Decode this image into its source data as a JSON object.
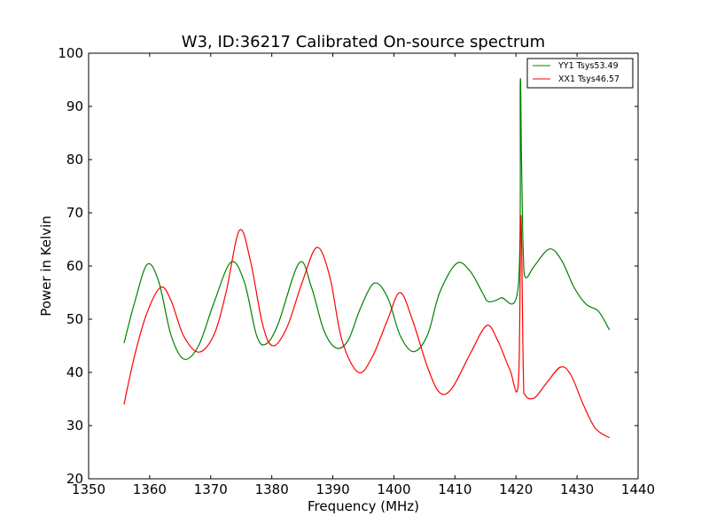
{
  "chart_data": {
    "type": "line",
    "title": "W3, ID:36217 Calibrated On-source spectrum",
    "xlabel": "Frequency (MHz)",
    "ylabel": "Power in Kelvin",
    "xlim": [
      1350,
      1440
    ],
    "ylim": [
      20,
      100
    ],
    "xticks": [
      1350,
      1360,
      1370,
      1380,
      1390,
      1400,
      1410,
      1420,
      1430,
      1440
    ],
    "yticks": [
      20,
      30,
      40,
      50,
      60,
      70,
      80,
      90,
      100
    ],
    "grid": false,
    "legend_position": "top-right",
    "series": [
      {
        "name": "YY1 Tsys53.49",
        "color": "#008000",
        "x": [
          1355.8,
          1357.5,
          1359.6,
          1361.5,
          1363.5,
          1365.6,
          1368.0,
          1370.5,
          1373.3,
          1375.5,
          1377.5,
          1379.0,
          1381.0,
          1384.5,
          1386.5,
          1388.5,
          1390.5,
          1392.5,
          1394.5,
          1396.8,
          1399.0,
          1401.0,
          1403.2,
          1405.5,
          1407.5,
          1410.3,
          1412.5,
          1414.5,
          1415.5,
          1417.5,
          1420.4,
          1420.7,
          1420.9,
          1421.2,
          1421.6,
          1423.0,
          1425.5,
          1427.5,
          1429.5,
          1431.5,
          1433.5,
          1435.3
        ],
        "y": [
          45.5,
          53,
          60.3,
          57,
          47,
          42.5,
          45,
          53,
          60.7,
          57,
          47,
          45.3,
          49,
          60.6,
          56,
          48,
          44.6,
          46,
          52,
          56.8,
          54,
          47,
          43.9,
          47,
          55,
          60.5,
          59,
          55,
          53.3,
          54,
          56.5,
          94.5,
          80,
          62,
          57.8,
          60,
          63.2,
          61,
          56,
          52.8,
          51.5,
          48
        ]
      },
      {
        "name": "XX1 Tsys46.57",
        "color": "#ff0000",
        "x": [
          1355.8,
          1357.5,
          1359.5,
          1361.8,
          1363.5,
          1365.5,
          1368.0,
          1370.5,
          1372.5,
          1374.7,
          1376.5,
          1378.5,
          1380.2,
          1382.5,
          1385.0,
          1387.4,
          1389.5,
          1391.5,
          1394.2,
          1396.5,
          1399.0,
          1401.0,
          1403.0,
          1405.5,
          1407.5,
          1409.5,
          1412.5,
          1415.2,
          1417.0,
          1419.0,
          1420.4,
          1420.8,
          1421.2,
          1421.5,
          1423.0,
          1425.0,
          1427.3,
          1429.0,
          1431.0,
          1433.0,
          1435.3
        ],
        "y": [
          34,
          43,
          51,
          56,
          53.5,
          47,
          43.8,
          47,
          55,
          66.7,
          61,
          49,
          45,
          48.5,
          57,
          63.5,
          58,
          46,
          40,
          43,
          50,
          55,
          50,
          41,
          36.2,
          37,
          43.5,
          48.8,
          46,
          40.5,
          38.2,
          69.5,
          40,
          35.8,
          35.2,
          38,
          41,
          39.5,
          34,
          29.5,
          27.7
        ]
      }
    ]
  }
}
